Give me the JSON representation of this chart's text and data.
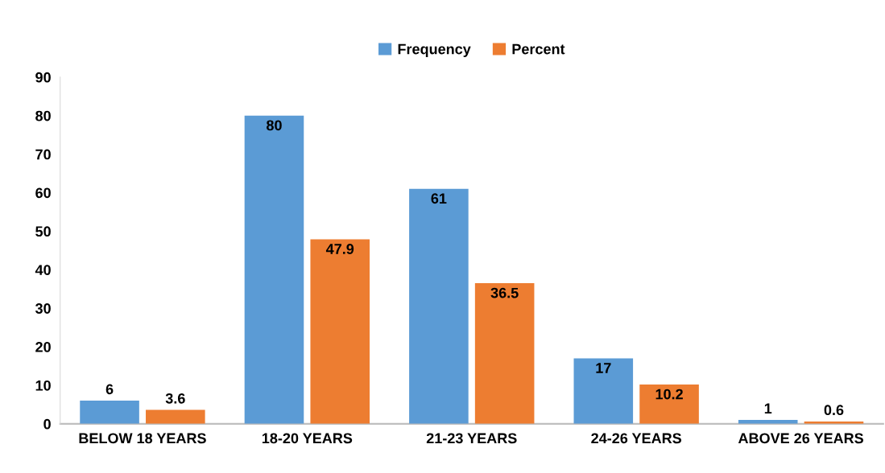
{
  "chart_data": {
    "type": "bar",
    "categories": [
      "BELOW 18 YEARS",
      "18-20 YEARS",
      "21-23 YEARS",
      "24-26 YEARS",
      "ABOVE 26 YEARS"
    ],
    "series": [
      {
        "name": "Frequency",
        "color": "#5b9bd5",
        "values": [
          6,
          80,
          61,
          17,
          1
        ]
      },
      {
        "name": "Percent",
        "color": "#ed7d31",
        "values": [
          3.6,
          47.9,
          36.5,
          10.2,
          0.6
        ]
      }
    ],
    "ylim": [
      0,
      90
    ],
    "yticks": [
      0,
      10,
      20,
      30,
      40,
      50,
      60,
      70,
      80,
      90
    ],
    "data_labels": true,
    "legend": "top",
    "grid": false
  }
}
